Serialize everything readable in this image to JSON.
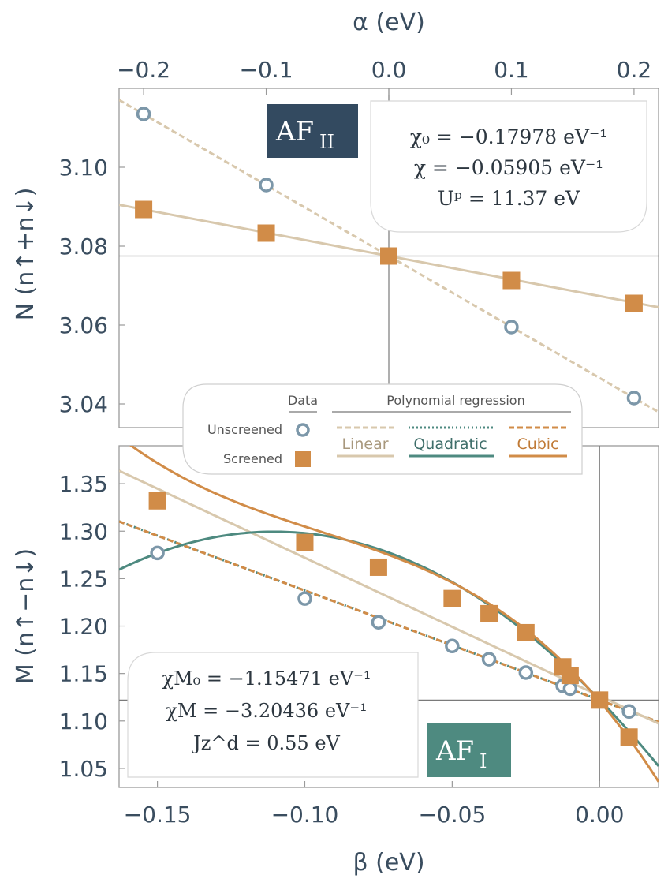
{
  "colors": {
    "linear": "#d8c8ad",
    "quadratic": "#4e8a80",
    "cubic": "#d18c48",
    "screened": "#d18c48",
    "unscreened": "#7c97a9",
    "axis_text": "#3a4d5f",
    "af2_bg": "#334a60",
    "af1_bg": "#4e8a80"
  },
  "chart_data": [
    {
      "type": "scatter",
      "title": "",
      "xlabel": "α (eV)",
      "ylabel": "N (n↑+n↓)",
      "xlim": [
        -0.22,
        0.22
      ],
      "ylim": [
        3.034,
        3.12
      ],
      "x_ticks": [
        "−0.2",
        "−0.1",
        "0.0",
        "0.1",
        "0.2"
      ],
      "x_tick_values": [
        -0.2,
        -0.1,
        0.0,
        0.1,
        0.2
      ],
      "y_ticks": [
        "3.04",
        "3.06",
        "3.08",
        "3.10"
      ],
      "y_tick_values": [
        3.04,
        3.06,
        3.08,
        3.1
      ],
      "ref_x": 0.0,
      "ref_y": 3.0775,
      "label_badge": {
        "main": "AF",
        "sub": "II"
      },
      "annotation": {
        "line1": "χ₀ = −0.17978 eV⁻¹",
        "line2": "χ  = −0.05905 eV⁻¹",
        "line3": "Uᵖ = 11.37 eV"
      },
      "series": [
        {
          "name": "Unscreened",
          "marker": "circle",
          "x": [
            -0.2,
            -0.1,
            0.0,
            0.1,
            0.2
          ],
          "y": [
            3.1135,
            3.0955,
            3.0775,
            3.0595,
            3.0415
          ]
        },
        {
          "name": "Screened",
          "marker": "square",
          "x": [
            -0.2,
            -0.1,
            0.0,
            0.1,
            0.2
          ],
          "y": [
            3.0893,
            3.0833,
            3.0775,
            3.0713,
            3.0655
          ]
        }
      ],
      "fits": [
        {
          "fit": "Linear",
          "of": "Unscreened",
          "style": "dashed",
          "slope": -0.17978,
          "intercept": 3.0775
        },
        {
          "fit": "Linear",
          "of": "Screened",
          "style": "solid",
          "slope": -0.05905,
          "intercept": 3.0775
        }
      ]
    },
    {
      "type": "scatter",
      "title": "",
      "xlabel": "β (eV)",
      "ylabel": "M (n↑−n↓)",
      "xlim": [
        -0.163,
        0.02
      ],
      "ylim": [
        1.03,
        1.39
      ],
      "x_ticks": [
        "−0.15",
        "−0.10",
        "−0.05",
        "0.00"
      ],
      "x_tick_values": [
        -0.15,
        -0.1,
        -0.05,
        0.0
      ],
      "y_ticks": [
        "1.05",
        "1.10",
        "1.15",
        "1.20",
        "1.25",
        "1.30",
        "1.35"
      ],
      "y_tick_values": [
        1.05,
        1.1,
        1.15,
        1.2,
        1.25,
        1.3,
        1.35
      ],
      "ref_x": 0.0,
      "ref_y": 1.122,
      "label_badge": {
        "main": "AF",
        "sub": "I"
      },
      "annotation": {
        "line1": "χM₀ = −1.15471 eV⁻¹",
        "line2": "χM = −3.20436 eV⁻¹",
        "line3": "Jz^d = 0.55 eV"
      },
      "series": [
        {
          "name": "Unscreened",
          "marker": "circle",
          "x": [
            -0.15,
            -0.1,
            -0.075,
            -0.05,
            -0.0375,
            -0.025,
            -0.0125,
            -0.01,
            0.01
          ],
          "y": [
            1.277,
            1.229,
            1.204,
            1.179,
            1.165,
            1.151,
            1.137,
            1.134,
            1.11
          ]
        },
        {
          "name": "Screened",
          "marker": "square",
          "x": [
            -0.15,
            -0.1,
            -0.075,
            -0.05,
            -0.0375,
            -0.025,
            -0.0125,
            -0.01,
            0.0,
            0.01
          ],
          "y": [
            1.332,
            1.288,
            1.262,
            1.229,
            1.213,
            1.193,
            1.157,
            1.148,
            1.122,
            1.083
          ]
        }
      ],
      "fits": [
        {
          "fit": "Linear",
          "of": "Unscreened",
          "style": "dashed",
          "coef": [
            1.122,
            -1.15471
          ]
        },
        {
          "fit": "Quadratic",
          "of": "Unscreened",
          "style": "dotted",
          "coef": [
            1.122,
            -1.1537,
            0.01
          ]
        },
        {
          "fit": "Cubic",
          "of": "Unscreened",
          "style": "dashed",
          "coef": [
            1.122,
            -1.1547,
            0.0,
            0.0
          ]
        },
        {
          "fit": "Linear",
          "of": "Screened",
          "style": "solid",
          "coef": [
            1.1264,
            -1.4558
          ]
        },
        {
          "fit": "Quadratic",
          "of": "Screened",
          "style": "solid",
          "coef": [
            1.1224,
            -3.20436,
            -14.5
          ]
        },
        {
          "fit": "Cubic",
          "of": "Screened",
          "style": "solid",
          "coef": [
            1.1209,
            -3.648,
            -27.9,
            -98.2
          ]
        }
      ]
    }
  ],
  "legend": {
    "data_header": "Data",
    "regression_header": "Polynomial regression",
    "rows": [
      "Unscreened",
      "Screened"
    ],
    "fits": [
      "Linear",
      "Quadratic",
      "Cubic"
    ]
  }
}
